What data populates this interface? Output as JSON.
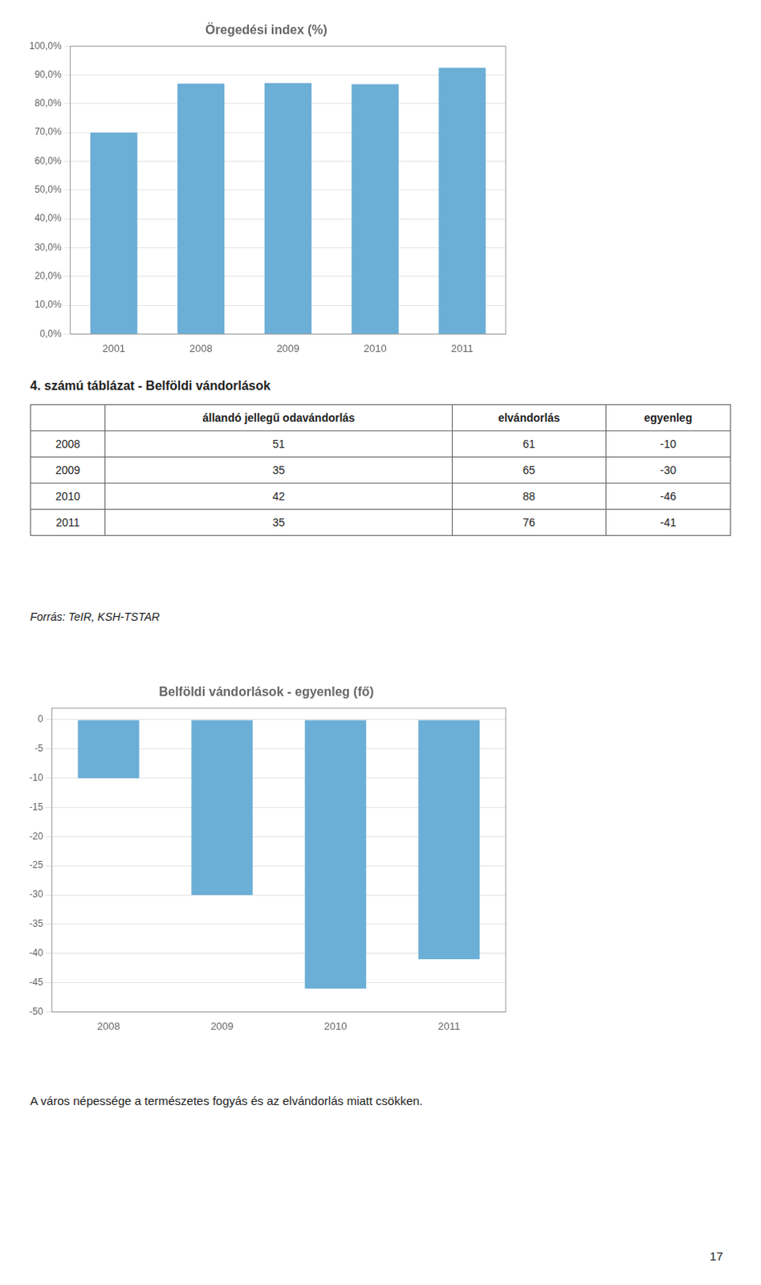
{
  "chart_data": [
    {
      "type": "bar",
      "title": "Öregedési index (%)",
      "categories": [
        "2001",
        "2008",
        "2009",
        "2010",
        "2011"
      ],
      "values": [
        70.0,
        87.0,
        87.2,
        86.8,
        92.5
      ],
      "color": "#6baed6",
      "ylim": [
        0,
        100
      ],
      "yticks": [
        {
          "value": 0,
          "label": "0,0%"
        },
        {
          "value": 10,
          "label": "10,0%"
        },
        {
          "value": 20,
          "label": "20,0%"
        },
        {
          "value": 30,
          "label": "30,0%"
        },
        {
          "value": 40,
          "label": "40,0%"
        },
        {
          "value": 50,
          "label": "50,0%"
        },
        {
          "value": 60,
          "label": "60,0%"
        },
        {
          "value": 70,
          "label": "70,0%"
        },
        {
          "value": 80,
          "label": "80,0%"
        },
        {
          "value": 90,
          "label": "90,0%"
        },
        {
          "value": 100,
          "label": "100,0%"
        }
      ],
      "grid": true
    },
    {
      "type": "bar",
      "title": "Belföldi vándorlások - egyenleg (fő)",
      "categories": [
        "2008",
        "2009",
        "2010",
        "2011"
      ],
      "values": [
        -10,
        -30,
        -46,
        -41
      ],
      "color": "#6baed6",
      "ylim": [
        -50,
        2
      ],
      "yticks": [
        0,
        -5,
        -10,
        -15,
        -20,
        -25,
        -30,
        -35,
        -40,
        -45,
        -50
      ],
      "grid": true
    }
  ],
  "table": {
    "title": "4. számú táblázat - Belföldi vándorlások",
    "headers": [
      "",
      "állandó jellegű odavándorlás",
      "elvándorlás",
      "egyenleg"
    ],
    "rows": [
      [
        "2008",
        "51",
        "61",
        "-10"
      ],
      [
        "2009",
        "35",
        "65",
        "-30"
      ],
      [
        "2010",
        "42",
        "88",
        "-46"
      ],
      [
        "2011",
        "35",
        "76",
        "-41"
      ]
    ],
    "source": "Forrás: TeIR, KSH-TSTAR"
  },
  "text": "A város népessége a természetes fogyás és az elvándorlás miatt csökken.",
  "page_number": "17"
}
